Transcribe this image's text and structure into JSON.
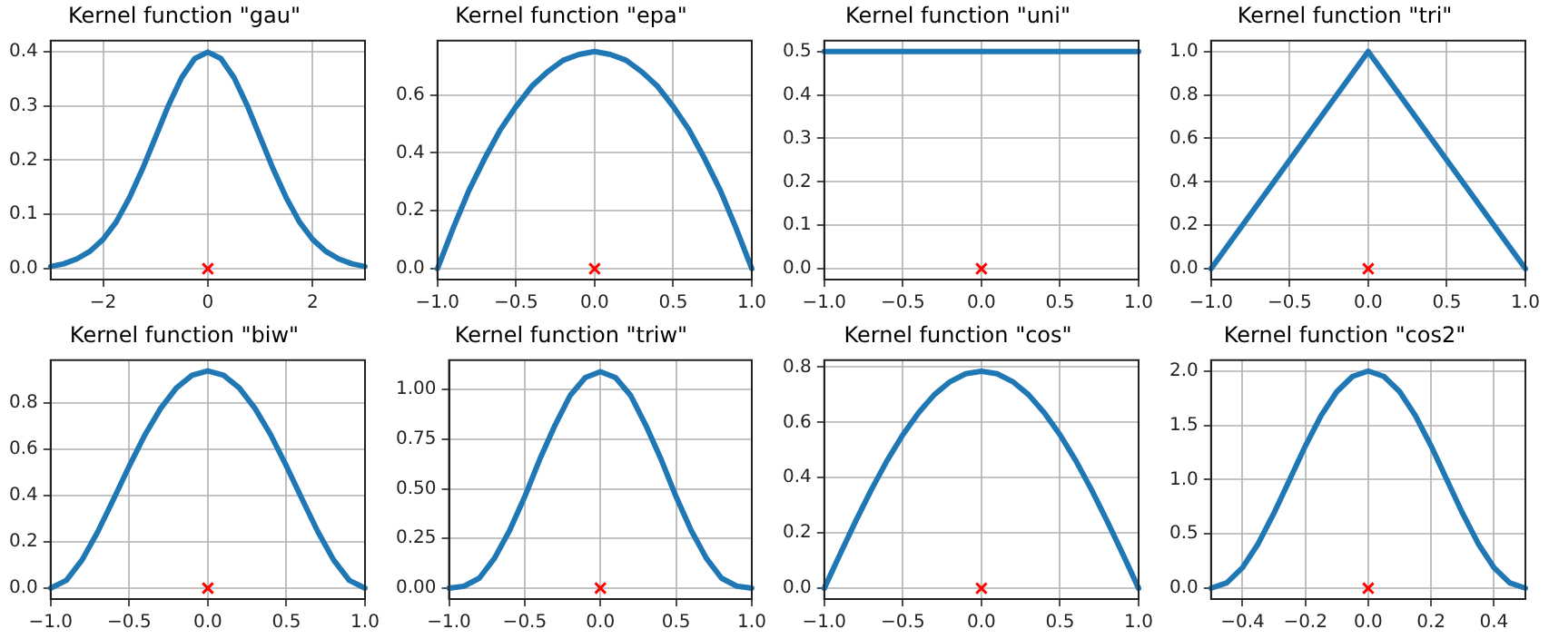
{
  "chart_data": [
    {
      "type": "line",
      "title": "Kernel function \"gau\"",
      "xlim": [
        -3,
        3
      ],
      "xticks": [
        {
          "value": -2,
          "label": "−2"
        },
        0,
        2
      ],
      "ylim": [
        -0.02,
        0.42
      ],
      "yticks": [
        {
          "value": 0,
          "label": "0.0"
        },
        0.1,
        0.2,
        0.3,
        0.4
      ],
      "grid": true,
      "series": [
        {
          "type": "line",
          "color": "#1f77b4",
          "x": [
            -3,
            -2.75,
            -2.5,
            -2.25,
            -2,
            -1.75,
            -1.5,
            -1.25,
            -1,
            -0.75,
            -0.5,
            -0.25,
            0,
            0.25,
            0.5,
            0.75,
            1,
            1.25,
            1.5,
            1.75,
            2,
            2.25,
            2.5,
            2.75,
            3
          ],
          "values": [
            0.004,
            0.009,
            0.018,
            0.032,
            0.054,
            0.086,
            0.13,
            0.183,
            0.242,
            0.301,
            0.352,
            0.387,
            0.399,
            0.387,
            0.352,
            0.301,
            0.242,
            0.183,
            0.13,
            0.086,
            0.054,
            0.032,
            0.018,
            0.009,
            0.004
          ]
        },
        {
          "type": "scatter",
          "color": "#ff0000",
          "marker": "cross",
          "x": [
            0
          ],
          "values": [
            0
          ]
        }
      ]
    },
    {
      "type": "line",
      "title": "Kernel function \"epa\"",
      "xlim": [
        -1,
        1
      ],
      "xticks": [
        {
          "value": -1,
          "label": "−1.0"
        },
        {
          "value": -0.5,
          "label": "−0.5"
        },
        {
          "value": 0,
          "label": "0.0"
        },
        0.5,
        {
          "value": 1,
          "label": "1.0"
        }
      ],
      "ylim": [
        -0.0375,
        0.7875
      ],
      "yticks": [
        {
          "value": 0,
          "label": "0.0"
        },
        0.2,
        0.4,
        0.6
      ],
      "grid": true,
      "series": [
        {
          "type": "line",
          "color": "#1f77b4",
          "x": [
            -1,
            -0.9,
            -0.8,
            -0.7,
            -0.6,
            -0.5,
            -0.4,
            -0.3,
            -0.2,
            -0.1,
            0,
            0.1,
            0.2,
            0.3,
            0.4,
            0.5,
            0.6,
            0.7,
            0.8,
            0.9,
            1
          ],
          "values": [
            0,
            0.14,
            0.27,
            0.38,
            0.48,
            0.56,
            0.63,
            0.68,
            0.72,
            0.74,
            0.75,
            0.74,
            0.72,
            0.68,
            0.63,
            0.56,
            0.48,
            0.38,
            0.27,
            0.14,
            0
          ]
        },
        {
          "type": "scatter",
          "color": "#ff0000",
          "marker": "cross",
          "x": [
            0
          ],
          "values": [
            0
          ]
        }
      ]
    },
    {
      "type": "line",
      "title": "Kernel function \"uni\"",
      "xlim": [
        -1,
        1
      ],
      "xticks": [
        {
          "value": -1,
          "label": "−1.0"
        },
        {
          "value": -0.5,
          "label": "−0.5"
        },
        {
          "value": 0,
          "label": "0.0"
        },
        0.5,
        {
          "value": 1,
          "label": "1.0"
        }
      ],
      "ylim": [
        -0.025,
        0.525
      ],
      "yticks": [
        {
          "value": 0,
          "label": "0.0"
        },
        0.1,
        0.2,
        0.3,
        0.4,
        0.5
      ],
      "grid": true,
      "series": [
        {
          "type": "line",
          "color": "#1f77b4",
          "x": [
            -1,
            1
          ],
          "values": [
            0.5,
            0.5
          ]
        },
        {
          "type": "scatter",
          "color": "#ff0000",
          "marker": "cross",
          "x": [
            0
          ],
          "values": [
            0
          ]
        }
      ]
    },
    {
      "type": "line",
      "title": "Kernel function \"tri\"",
      "xlim": [
        -1,
        1
      ],
      "xticks": [
        {
          "value": -1,
          "label": "−1.0"
        },
        {
          "value": -0.5,
          "label": "−0.5"
        },
        {
          "value": 0,
          "label": "0.0"
        },
        0.5,
        {
          "value": 1,
          "label": "1.0"
        }
      ],
      "ylim": [
        -0.05,
        1.05
      ],
      "yticks": [
        {
          "value": 0,
          "label": "0.0"
        },
        0.2,
        0.4,
        0.6,
        0.8,
        {
          "value": 1,
          "label": "1.0"
        }
      ],
      "grid": true,
      "series": [
        {
          "type": "line",
          "color": "#1f77b4",
          "x": [
            -1,
            0,
            1
          ],
          "values": [
            0,
            1,
            0
          ]
        },
        {
          "type": "scatter",
          "color": "#ff0000",
          "marker": "cross",
          "x": [
            0
          ],
          "values": [
            0
          ]
        }
      ]
    },
    {
      "type": "line",
      "title": "Kernel function \"biw\"",
      "xlim": [
        -1,
        1
      ],
      "xticks": [
        {
          "value": -1,
          "label": "−1.0"
        },
        {
          "value": -0.5,
          "label": "−0.5"
        },
        {
          "value": 0,
          "label": "0.0"
        },
        0.5,
        {
          "value": 1,
          "label": "1.0"
        }
      ],
      "ylim": [
        -0.047,
        0.984
      ],
      "yticks": [
        {
          "value": 0,
          "label": "0.0"
        },
        0.2,
        0.4,
        0.6,
        0.8
      ],
      "grid": true,
      "series": [
        {
          "type": "line",
          "color": "#1f77b4",
          "x": [
            -1,
            -0.9,
            -0.8,
            -0.7,
            -0.6,
            -0.5,
            -0.4,
            -0.3,
            -0.2,
            -0.1,
            0,
            0.1,
            0.2,
            0.3,
            0.4,
            0.5,
            0.6,
            0.7,
            0.8,
            0.9,
            1
          ],
          "values": [
            0,
            0.034,
            0.122,
            0.244,
            0.384,
            0.527,
            0.662,
            0.776,
            0.864,
            0.919,
            0.938,
            0.919,
            0.864,
            0.776,
            0.662,
            0.527,
            0.384,
            0.244,
            0.122,
            0.034,
            0
          ]
        },
        {
          "type": "scatter",
          "color": "#ff0000",
          "marker": "cross",
          "x": [
            0
          ],
          "values": [
            0
          ]
        }
      ]
    },
    {
      "type": "line",
      "title": "Kernel function \"triw\"",
      "xlim": [
        -1,
        1
      ],
      "xticks": [
        {
          "value": -1,
          "label": "−1.0"
        },
        {
          "value": -0.5,
          "label": "−0.5"
        },
        {
          "value": 0,
          "label": "0.0"
        },
        0.5,
        {
          "value": 1,
          "label": "1.0"
        }
      ],
      "ylim": [
        -0.055,
        1.148
      ],
      "yticks": [
        {
          "value": 0,
          "label": "0.00"
        },
        0.25,
        {
          "value": 0.5,
          "label": "0.50"
        },
        0.75,
        {
          "value": 1,
          "label": "1.00"
        }
      ],
      "grid": true,
      "series": [
        {
          "type": "line",
          "color": "#1f77b4",
          "x": [
            -1,
            -0.9,
            -0.8,
            -0.7,
            -0.6,
            -0.5,
            -0.4,
            -0.3,
            -0.2,
            -0.1,
            0,
            0.1,
            0.2,
            0.3,
            0.4,
            0.5,
            0.6,
            0.7,
            0.8,
            0.9,
            1
          ],
          "values": [
            0,
            0.01,
            0.05,
            0.15,
            0.29,
            0.46,
            0.65,
            0.82,
            0.97,
            1.06,
            1.09,
            1.06,
            0.97,
            0.82,
            0.65,
            0.46,
            0.29,
            0.15,
            0.05,
            0.01,
            0
          ]
        },
        {
          "type": "scatter",
          "color": "#ff0000",
          "marker": "cross",
          "x": [
            0
          ],
          "values": [
            0
          ]
        }
      ]
    },
    {
      "type": "line",
      "title": "Kernel function \"cos\"",
      "xlim": [
        -1,
        1
      ],
      "xticks": [
        {
          "value": -1,
          "label": "−1.0"
        },
        {
          "value": -0.5,
          "label": "−0.5"
        },
        {
          "value": 0,
          "label": "0.0"
        },
        0.5,
        {
          "value": 1,
          "label": "1.0"
        }
      ],
      "ylim": [
        -0.039,
        0.825
      ],
      "yticks": [
        {
          "value": 0,
          "label": "0.0"
        },
        0.2,
        0.4,
        0.6,
        0.8
      ],
      "grid": true,
      "series": [
        {
          "type": "line",
          "color": "#1f77b4",
          "x": [
            -1,
            -0.9,
            -0.8,
            -0.7,
            -0.6,
            -0.5,
            -0.4,
            -0.3,
            -0.2,
            -0.1,
            0,
            0.1,
            0.2,
            0.3,
            0.4,
            0.5,
            0.6,
            0.7,
            0.8,
            0.9,
            1
          ],
          "values": [
            0,
            0.123,
            0.243,
            0.357,
            0.462,
            0.555,
            0.635,
            0.7,
            0.747,
            0.776,
            0.785,
            0.776,
            0.747,
            0.7,
            0.635,
            0.555,
            0.462,
            0.357,
            0.243,
            0.123,
            0
          ]
        },
        {
          "type": "scatter",
          "color": "#ff0000",
          "marker": "cross",
          "x": [
            0
          ],
          "values": [
            0
          ]
        }
      ]
    },
    {
      "type": "line",
      "title": "Kernel function \"cos2\"",
      "xlim": [
        -0.5,
        0.5
      ],
      "xticks": [
        {
          "value": -0.4,
          "label": "−0.4"
        },
        {
          "value": -0.2,
          "label": "−0.2"
        },
        {
          "value": 0,
          "label": "0.0"
        },
        0.2,
        0.4
      ],
      "ylim": [
        -0.1,
        2.1
      ],
      "yticks": [
        {
          "value": 0,
          "label": "0.0"
        },
        0.5,
        {
          "value": 1,
          "label": "1.0"
        },
        1.5,
        {
          "value": 2,
          "label": "2.0"
        }
      ],
      "grid": true,
      "series": [
        {
          "type": "line",
          "color": "#1f77b4",
          "x": [
            -0.5,
            -0.45,
            -0.4,
            -0.35,
            -0.3,
            -0.25,
            -0.2,
            -0.15,
            -0.1,
            -0.05,
            0,
            0.05,
            0.1,
            0.15,
            0.2,
            0.25,
            0.3,
            0.35,
            0.4,
            0.45,
            0.5
          ],
          "values": [
            0,
            0.05,
            0.19,
            0.41,
            0.69,
            1,
            1.31,
            1.59,
            1.81,
            1.95,
            2,
            1.95,
            1.81,
            1.59,
            1.31,
            1,
            0.69,
            0.41,
            0.19,
            0.05,
            0
          ]
        },
        {
          "type": "scatter",
          "color": "#ff0000",
          "marker": "cross",
          "x": [
            0
          ],
          "values": [
            0
          ]
        }
      ]
    }
  ]
}
